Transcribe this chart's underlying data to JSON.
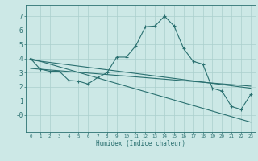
{
  "bg_color": "#cce8e6",
  "grid_color": "#aacfcd",
  "line_color": "#2a7070",
  "xlabel": "Humidex (Indice chaleur)",
  "xlim": [
    -0.5,
    23.5
  ],
  "ylim": [
    -1.2,
    7.8
  ],
  "yticks": [
    0,
    1,
    2,
    3,
    4,
    5,
    6,
    7
  ],
  "ytick_labels": [
    "-0",
    "1",
    "2",
    "3",
    "4",
    "5",
    "6",
    "7"
  ],
  "xticks": [
    0,
    1,
    2,
    3,
    4,
    5,
    6,
    7,
    8,
    9,
    10,
    11,
    12,
    13,
    14,
    15,
    16,
    17,
    18,
    19,
    20,
    21,
    22,
    23
  ],
  "lines": [
    {
      "x": [
        0,
        1,
        2,
        3,
        4,
        5,
        6,
        7,
        8,
        9,
        10,
        11,
        12,
        13,
        14,
        15,
        16,
        17,
        18,
        19,
        20,
        21,
        22,
        23
      ],
      "y": [
        4.0,
        3.25,
        3.1,
        3.1,
        2.45,
        2.4,
        2.2,
        2.65,
        3.0,
        4.1,
        4.1,
        4.9,
        6.25,
        6.3,
        7.0,
        6.3,
        4.7,
        3.8,
        3.6,
        1.9,
        1.7,
        0.6,
        0.4,
        1.45
      ],
      "marker": true
    },
    {
      "x": [
        0,
        23
      ],
      "y": [
        3.9,
        1.9
      ],
      "marker": false
    },
    {
      "x": [
        0,
        23
      ],
      "y": [
        3.3,
        2.05
      ],
      "marker": false
    },
    {
      "x": [
        0,
        23
      ],
      "y": [
        4.0,
        -0.5
      ],
      "marker": false
    }
  ]
}
